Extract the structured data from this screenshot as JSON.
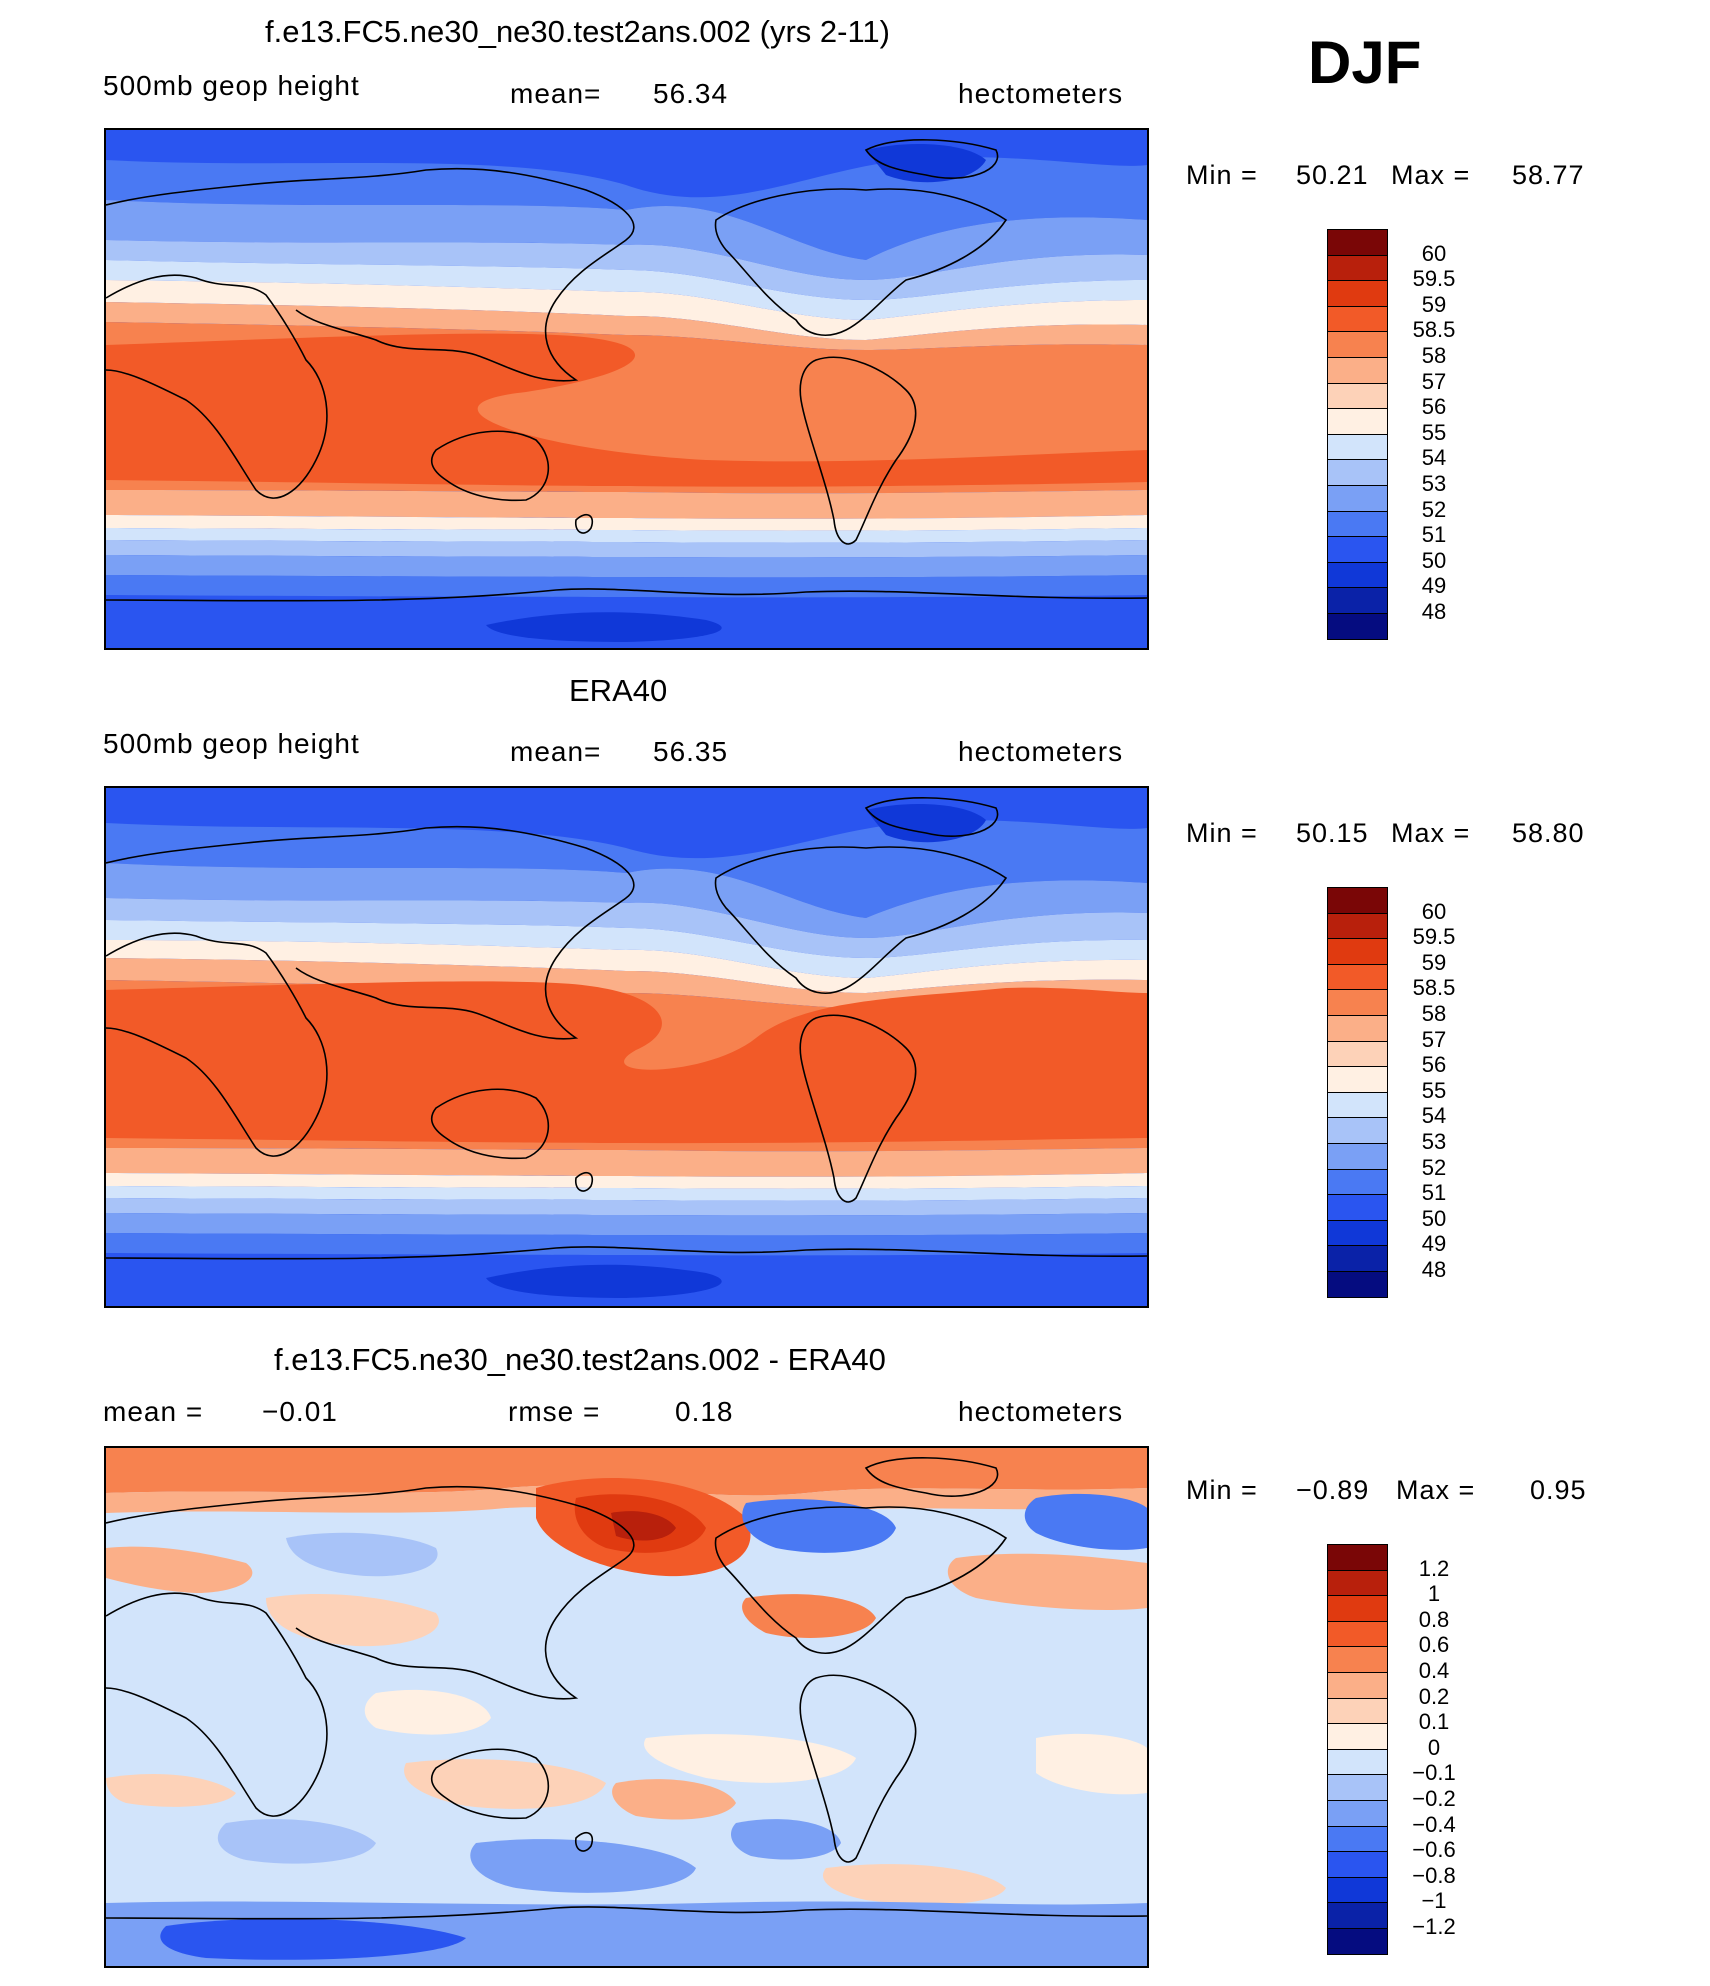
{
  "season": "DJF",
  "contour_palette": [
    "#050c80",
    "#0a22a8",
    "#1038d8",
    "#2a55f0",
    "#4a79f3",
    "#7aa0f5",
    "#a8c3f8",
    "#d2e4fb",
    "#fff0e3",
    "#fdd2b8",
    "#fbaf88",
    "#f7824f",
    "#f25a28",
    "#e03a10",
    "#b8200c",
    "#7a0606"
  ],
  "chart_data": [
    {
      "type": "heatmap",
      "title": "f.e13.FC5.ne30_ne30.test2ans.002 (yrs 2-11)",
      "left_label": "500mb geop height",
      "stat_label": "mean=",
      "stat_value": "56.34",
      "units": "hectometers",
      "min_label": "Min =",
      "min_value": "50.21",
      "max_label": "Max =",
      "max_value": "58.77",
      "levels": [
        "60",
        "59.5",
        "59",
        "58.5",
        "58",
        "57",
        "56",
        "55",
        "54",
        "53",
        "52",
        "51",
        "50",
        "49",
        "48"
      ]
    },
    {
      "type": "heatmap",
      "title": "ERA40",
      "left_label": "500mb geop height",
      "stat_label": "mean=",
      "stat_value": "56.35",
      "units": "hectometers",
      "min_label": "Min =",
      "min_value": "50.15",
      "max_label": "Max =",
      "max_value": "58.80",
      "levels": [
        "60",
        "59.5",
        "59",
        "58.5",
        "58",
        "57",
        "56",
        "55",
        "54",
        "53",
        "52",
        "51",
        "50",
        "49",
        "48"
      ]
    },
    {
      "type": "heatmap",
      "title": "f.e13.FC5.ne30_ne30.test2ans.002 - ERA40",
      "left_label": "mean =",
      "left_value": "−0.01",
      "stat_label": "rmse =",
      "stat_value": "0.18",
      "units": "hectometers",
      "min_label": "Min =",
      "min_value": "−0.89",
      "max_label": "Max =",
      "max_value": "0.95",
      "levels": [
        "1.2",
        "1",
        "0.8",
        "0.6",
        "0.4",
        "0.2",
        "0.1",
        "0",
        "−0.1",
        "−0.2",
        "−0.4",
        "−0.6",
        "−0.8",
        "−1",
        "−1.2"
      ]
    }
  ]
}
